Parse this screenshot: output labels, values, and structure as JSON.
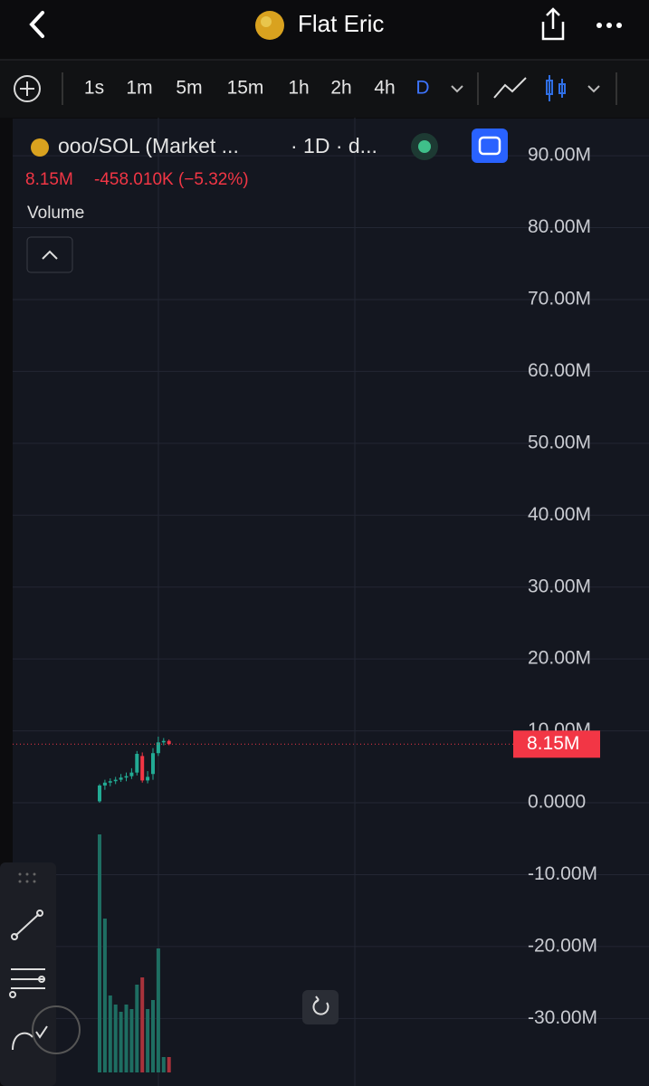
{
  "header": {
    "title": "Flat Eric"
  },
  "toolbar": {
    "timeframes": [
      "1s",
      "1m",
      "5m",
      "15m",
      "1h",
      "2h",
      "4h",
      "D"
    ],
    "active_timeframe": 7
  },
  "legend": {
    "symbol": "ooo/SOL (Market ...",
    "interval": "· 1D · d...",
    "price": "8.15M",
    "change": "-458.010K (−5.32%)",
    "indicator": "Volume"
  },
  "chart_data": {
    "type": "candlestick",
    "ylim": [
      -39400000,
      95300000
    ],
    "yticks": [
      {
        "value": 90000000,
        "label": "90.00M"
      },
      {
        "value": 80000000,
        "label": "80.00M"
      },
      {
        "value": 70000000,
        "label": "70.00M"
      },
      {
        "value": 60000000,
        "label": "60.00M"
      },
      {
        "value": 50000000,
        "label": "50.00M"
      },
      {
        "value": 40000000,
        "label": "40.00M"
      },
      {
        "value": 30000000,
        "label": "30.00M"
      },
      {
        "value": 20000000,
        "label": "20.00M"
      },
      {
        "value": 10000000,
        "label": "10.00M"
      },
      {
        "value": 0,
        "label": "0.0000"
      },
      {
        "value": -10000000,
        "label": "-10.00M"
      },
      {
        "value": -20000000,
        "label": "-20.00M"
      },
      {
        "value": -30000000,
        "label": "-30.00M"
      }
    ],
    "grid": true,
    "last_price": {
      "value": 8150000,
      "label": "8.15M"
    },
    "up_color": "#22ab94",
    "down_color": "#f23645",
    "volume_up_color": "#1e6e62",
    "volume_down_color": "#a8323b",
    "series": [
      {
        "name": "ooo/SOL",
        "open": [
          200000,
          2400000,
          2800000,
          3000000,
          3200000,
          3500000,
          3700000,
          4200000,
          6500000,
          3100000,
          4000000,
          6900000,
          8400000,
          8600000
        ],
        "high": [
          2600000,
          3200000,
          3400000,
          3600000,
          4000000,
          4200000,
          4800000,
          7200000,
          7000000,
          4400000,
          7600000,
          9200000,
          9000000,
          8800000
        ],
        "low": [
          0,
          1800000,
          2300000,
          2600000,
          2900000,
          3000000,
          3300000,
          3800000,
          2800000,
          2700000,
          3200000,
          6500000,
          8000000,
          8000000
        ],
        "close": [
          2400000,
          2800000,
          3000000,
          3200000,
          3500000,
          3700000,
          4200000,
          6800000,
          3100000,
          3600000,
          6900000,
          8400000,
          8600000,
          8150000
        ],
        "volume": [
          263,
          170,
          85,
          75,
          67,
          75,
          70,
          97,
          105,
          70,
          80,
          137,
          17,
          17
        ]
      }
    ]
  }
}
